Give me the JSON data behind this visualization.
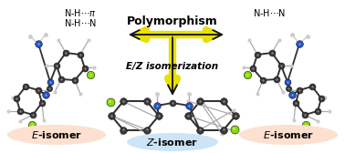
{
  "bg_color": "#ffffff",
  "arrow_color": "#111111",
  "arrow_yellow": "#e8e000",
  "polymorphism_text": "Polymorphism",
  "ez_text": "E/Z isomerization",
  "e_isomer_left_oval_color": "#fde0d0",
  "z_isomer_oval_color": "#cce4f7",
  "atom_C": "#3a3a3a",
  "atom_C_dark": "#282828",
  "atom_N": "#2255cc",
  "atom_F": "#88dd00",
  "atom_H": "#cccccc",
  "bond_color": "#333333"
}
